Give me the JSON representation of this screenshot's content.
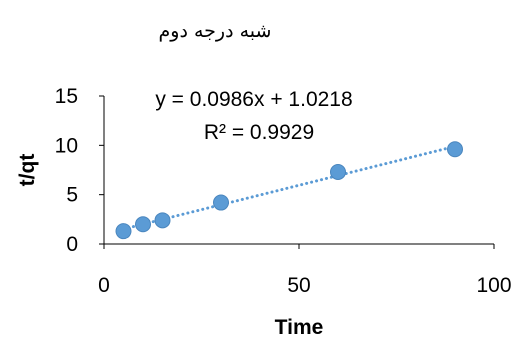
{
  "chart_data": {
    "type": "scatter",
    "title": "شبه درجه دوم",
    "xlabel": "Time",
    "ylabel": "t/qt",
    "xlim": [
      0,
      100
    ],
    "ylim": [
      0,
      15
    ],
    "xticks": [
      0,
      50,
      100
    ],
    "yticks": [
      0,
      5,
      10,
      15
    ],
    "grid": false,
    "legend": "none",
    "marker_color": "#5B9BD5",
    "trendline_color": "#5B9BD5",
    "series": [
      {
        "x": [
          5,
          10,
          15,
          30,
          60,
          90
        ],
        "y": [
          1.3,
          2.0,
          2.4,
          4.2,
          7.3,
          9.6
        ]
      }
    ],
    "trendline": {
      "type": "linear",
      "slope": 0.0986,
      "intercept": 1.0218,
      "x_range": [
        5,
        90
      ]
    },
    "annotations": {
      "equation": "y = 0.0986x + 1.0218",
      "r_squared": "R² = 0.9929"
    }
  }
}
